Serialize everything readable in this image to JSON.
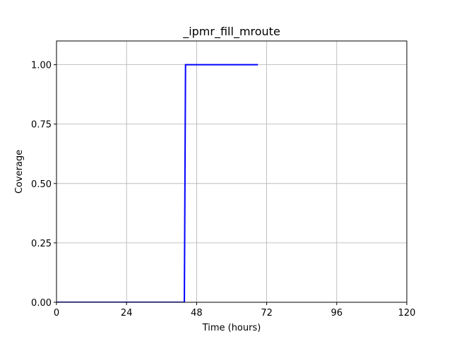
{
  "chart_data": {
    "type": "line",
    "title": "_ipmr_fill_mroute",
    "xlabel": "Time (hours)",
    "ylabel": "Coverage",
    "xlim": [
      0,
      120
    ],
    "ylim": [
      0,
      1.1
    ],
    "xticks": [
      0,
      24,
      48,
      72,
      96,
      120
    ],
    "xtick_labels": [
      "0",
      "24",
      "48",
      "72",
      "96",
      "120"
    ],
    "yticks": [
      0,
      0.25,
      0.5,
      0.75,
      1.0
    ],
    "ytick_labels": [
      "0.00",
      "0.25",
      "0.50",
      "0.75",
      "1.00"
    ],
    "grid": true,
    "series": [
      {
        "color": "#0000ff",
        "x": [
          0,
          43.8,
          44.2,
          69
        ],
        "y": [
          0,
          0,
          1,
          1
        ]
      }
    ]
  }
}
